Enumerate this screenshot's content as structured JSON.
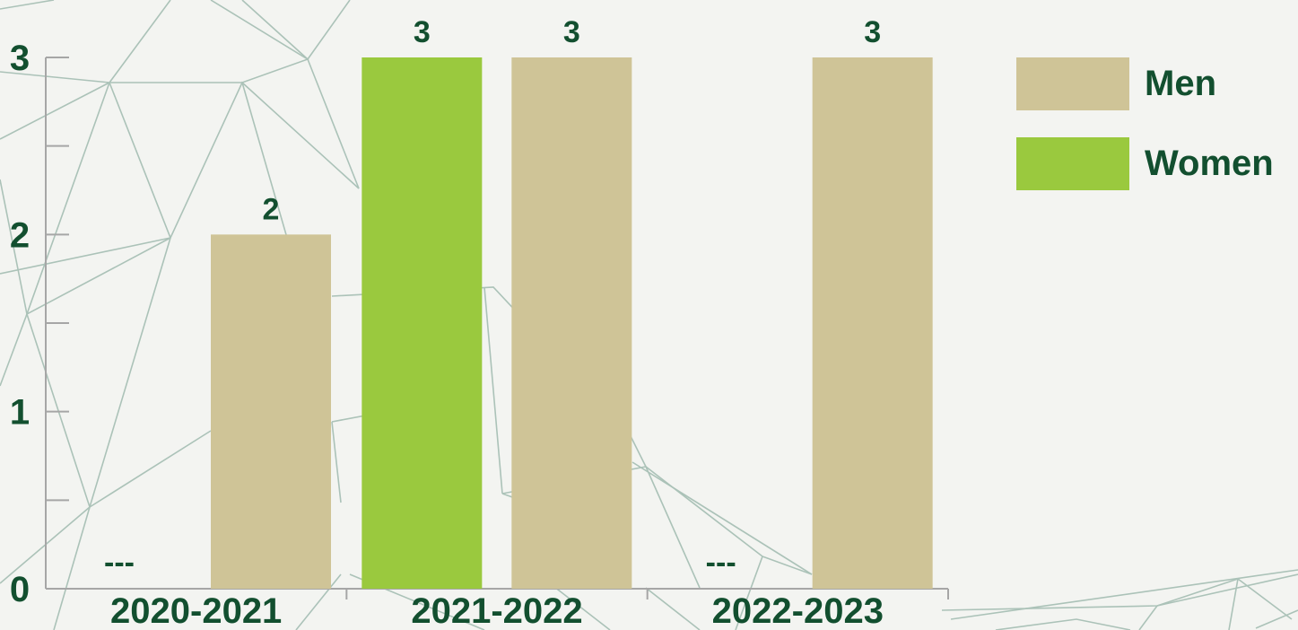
{
  "colors": {
    "men": "#cfc497",
    "women": "#9ac93e",
    "text": "#124f2f",
    "axis": "#a6a6a6",
    "background": "#f3f4f1",
    "mesh": "#93b2a5"
  },
  "chart_data": {
    "type": "bar",
    "categories": [
      "2020-2021",
      "2021-2022",
      "2022-2023"
    ],
    "series": [
      {
        "name": "Women",
        "values": [
          0,
          3,
          0
        ],
        "labels": [
          "---",
          "3",
          "---"
        ]
      },
      {
        "name": "Men",
        "values": [
          2,
          3,
          3
        ],
        "labels": [
          "2",
          "3",
          "3"
        ]
      }
    ],
    "yticks": [
      "0",
      "1",
      "2",
      "3"
    ],
    "ylim": [
      0,
      3
    ],
    "title": "",
    "xlabel": "",
    "ylabel": "",
    "grid": false,
    "legend_position": "top-right"
  }
}
